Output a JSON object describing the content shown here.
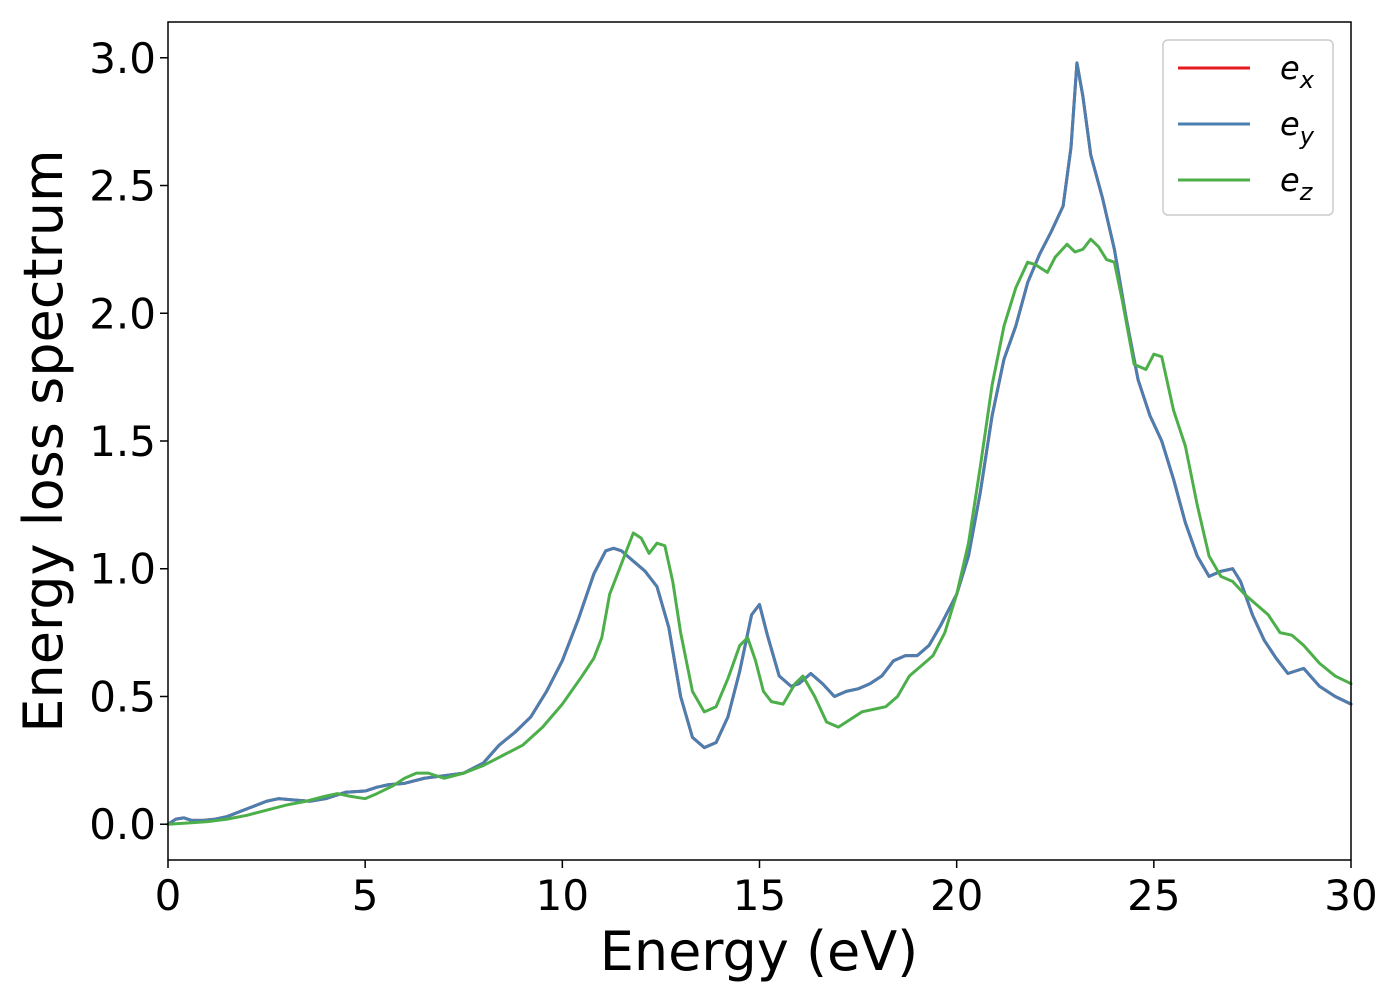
{
  "chart_data": {
    "type": "line",
    "title": "",
    "xlabel": "Energy (eV)",
    "ylabel": "Energy loss spectrum",
    "xlim": [
      0,
      30
    ],
    "ylim": [
      -0.14,
      3.14
    ],
    "xticks": [
      0,
      5,
      10,
      15,
      20,
      25,
      30
    ],
    "xtick_labels": [
      "0",
      "5",
      "10",
      "15",
      "20",
      "25",
      "30"
    ],
    "yticks": [
      0.0,
      0.5,
      1.0,
      1.5,
      2.0,
      2.5,
      3.0
    ],
    "ytick_labels": [
      "0.0",
      "0.5",
      "1.0",
      "1.5",
      "2.0",
      "2.5",
      "3.0"
    ],
    "grid": false,
    "legend_position": "top-right",
    "series": [
      {
        "name": "e",
        "subscript": "x",
        "color": "#e41a1c",
        "x": [
          0,
          0.2,
          0.4,
          0.6,
          0.9,
          1.2,
          1.5,
          2.0,
          2.5,
          2.8,
          3.2,
          3.6,
          4.0,
          4.5,
          5.0,
          5.3,
          5.6,
          6.0,
          6.5,
          7.0,
          7.5,
          8.0,
          8.4,
          8.8,
          9.2,
          9.6,
          10.0,
          10.4,
          10.8,
          11.1,
          11.3,
          11.5,
          11.8,
          12.1,
          12.4,
          12.7,
          13.0,
          13.3,
          13.6,
          13.9,
          14.2,
          14.5,
          14.8,
          15.0,
          15.2,
          15.5,
          15.8,
          16.0,
          16.3,
          16.6,
          16.9,
          17.2,
          17.5,
          17.8,
          18.1,
          18.4,
          18.7,
          19.0,
          19.3,
          19.6,
          20.0,
          20.3,
          20.6,
          20.9,
          21.2,
          21.5,
          21.8,
          22.1,
          22.4,
          22.7,
          22.9,
          23.05,
          23.2,
          23.4,
          23.7,
          24.0,
          24.3,
          24.6,
          24.9,
          25.2,
          25.5,
          25.8,
          26.1,
          26.4,
          26.7,
          27.0,
          27.2,
          27.5,
          27.8,
          28.1,
          28.4,
          28.8,
          29.2,
          29.6,
          30.0
        ],
        "y": [
          0.0,
          0.02,
          0.025,
          0.015,
          0.015,
          0.02,
          0.03,
          0.06,
          0.09,
          0.1,
          0.095,
          0.09,
          0.1,
          0.125,
          0.13,
          0.145,
          0.155,
          0.16,
          0.18,
          0.19,
          0.2,
          0.24,
          0.31,
          0.36,
          0.42,
          0.52,
          0.64,
          0.8,
          0.98,
          1.07,
          1.08,
          1.07,
          1.03,
          0.99,
          0.93,
          0.77,
          0.5,
          0.34,
          0.3,
          0.32,
          0.42,
          0.6,
          0.82,
          0.86,
          0.74,
          0.58,
          0.54,
          0.55,
          0.59,
          0.55,
          0.5,
          0.52,
          0.53,
          0.55,
          0.58,
          0.64,
          0.66,
          0.66,
          0.7,
          0.78,
          0.9,
          1.05,
          1.3,
          1.6,
          1.82,
          1.95,
          2.12,
          2.23,
          2.32,
          2.42,
          2.65,
          2.98,
          2.85,
          2.62,
          2.45,
          2.25,
          1.98,
          1.74,
          1.6,
          1.5,
          1.35,
          1.18,
          1.05,
          0.97,
          0.99,
          1.0,
          0.95,
          0.82,
          0.72,
          0.65,
          0.59,
          0.61,
          0.54,
          0.5,
          0.47
        ]
      },
      {
        "name": "e",
        "subscript": "y",
        "color": "#4a7fb0",
        "x": [
          0,
          0.2,
          0.4,
          0.6,
          0.9,
          1.2,
          1.5,
          2.0,
          2.5,
          2.8,
          3.2,
          3.6,
          4.0,
          4.5,
          5.0,
          5.3,
          5.6,
          6.0,
          6.5,
          7.0,
          7.5,
          8.0,
          8.4,
          8.8,
          9.2,
          9.6,
          10.0,
          10.4,
          10.8,
          11.1,
          11.3,
          11.5,
          11.8,
          12.1,
          12.4,
          12.7,
          13.0,
          13.3,
          13.6,
          13.9,
          14.2,
          14.5,
          14.8,
          15.0,
          15.2,
          15.5,
          15.8,
          16.0,
          16.3,
          16.6,
          16.9,
          17.2,
          17.5,
          17.8,
          18.1,
          18.4,
          18.7,
          19.0,
          19.3,
          19.6,
          20.0,
          20.3,
          20.6,
          20.9,
          21.2,
          21.5,
          21.8,
          22.1,
          22.4,
          22.7,
          22.9,
          23.05,
          23.2,
          23.4,
          23.7,
          24.0,
          24.3,
          24.6,
          24.9,
          25.2,
          25.5,
          25.8,
          26.1,
          26.4,
          26.7,
          27.0,
          27.2,
          27.5,
          27.8,
          28.1,
          28.4,
          28.8,
          29.2,
          29.6,
          30.0
        ],
        "y": [
          0.0,
          0.02,
          0.025,
          0.015,
          0.015,
          0.02,
          0.03,
          0.06,
          0.09,
          0.1,
          0.095,
          0.09,
          0.1,
          0.125,
          0.13,
          0.145,
          0.155,
          0.16,
          0.18,
          0.19,
          0.2,
          0.24,
          0.31,
          0.36,
          0.42,
          0.52,
          0.64,
          0.8,
          0.98,
          1.07,
          1.08,
          1.07,
          1.03,
          0.99,
          0.93,
          0.77,
          0.5,
          0.34,
          0.3,
          0.32,
          0.42,
          0.6,
          0.82,
          0.86,
          0.74,
          0.58,
          0.54,
          0.55,
          0.59,
          0.55,
          0.5,
          0.52,
          0.53,
          0.55,
          0.58,
          0.64,
          0.66,
          0.66,
          0.7,
          0.78,
          0.9,
          1.05,
          1.3,
          1.6,
          1.82,
          1.95,
          2.12,
          2.23,
          2.32,
          2.42,
          2.65,
          2.98,
          2.85,
          2.62,
          2.45,
          2.25,
          1.98,
          1.74,
          1.6,
          1.5,
          1.35,
          1.18,
          1.05,
          0.97,
          0.99,
          1.0,
          0.95,
          0.82,
          0.72,
          0.65,
          0.59,
          0.61,
          0.54,
          0.5,
          0.47
        ]
      },
      {
        "name": "e",
        "subscript": "z",
        "color": "#4daf4a",
        "x": [
          0,
          0.5,
          1.0,
          1.5,
          2.0,
          2.5,
          3.0,
          3.5,
          4.0,
          4.3,
          4.6,
          5.0,
          5.3,
          5.7,
          6.0,
          6.3,
          6.6,
          7.0,
          7.5,
          8.0,
          8.5,
          9.0,
          9.5,
          10.0,
          10.5,
          10.8,
          11.0,
          11.2,
          11.5,
          11.8,
          12.0,
          12.2,
          12.4,
          12.6,
          12.8,
          13.0,
          13.3,
          13.6,
          13.9,
          14.2,
          14.5,
          14.7,
          14.9,
          15.1,
          15.3,
          15.6,
          15.9,
          16.1,
          16.4,
          16.7,
          17.0,
          17.3,
          17.6,
          17.9,
          18.2,
          18.5,
          18.8,
          19.1,
          19.4,
          19.7,
          20.0,
          20.3,
          20.6,
          20.9,
          21.2,
          21.5,
          21.8,
          22.0,
          22.3,
          22.5,
          22.8,
          23.0,
          23.2,
          23.4,
          23.6,
          23.8,
          24.0,
          24.2,
          24.5,
          24.8,
          25.0,
          25.2,
          25.5,
          25.8,
          26.1,
          26.4,
          26.7,
          27.0,
          27.3,
          27.6,
          27.9,
          28.2,
          28.5,
          28.8,
          29.2,
          29.6,
          30.0
        ],
        "y": [
          0.0,
          0.005,
          0.01,
          0.02,
          0.035,
          0.055,
          0.075,
          0.09,
          0.11,
          0.12,
          0.11,
          0.1,
          0.12,
          0.15,
          0.18,
          0.2,
          0.2,
          0.18,
          0.2,
          0.23,
          0.27,
          0.31,
          0.38,
          0.47,
          0.58,
          0.65,
          0.73,
          0.9,
          1.02,
          1.14,
          1.12,
          1.06,
          1.1,
          1.09,
          0.95,
          0.75,
          0.52,
          0.44,
          0.46,
          0.57,
          0.7,
          0.73,
          0.64,
          0.52,
          0.48,
          0.47,
          0.55,
          0.58,
          0.5,
          0.4,
          0.38,
          0.41,
          0.44,
          0.45,
          0.46,
          0.5,
          0.58,
          0.62,
          0.66,
          0.75,
          0.9,
          1.1,
          1.4,
          1.72,
          1.95,
          2.1,
          2.2,
          2.19,
          2.16,
          2.22,
          2.27,
          2.24,
          2.25,
          2.29,
          2.26,
          2.21,
          2.2,
          2.05,
          1.8,
          1.78,
          1.84,
          1.83,
          1.62,
          1.48,
          1.25,
          1.05,
          0.97,
          0.95,
          0.9,
          0.86,
          0.82,
          0.75,
          0.74,
          0.7,
          0.63,
          0.58,
          0.55
        ]
      }
    ]
  }
}
